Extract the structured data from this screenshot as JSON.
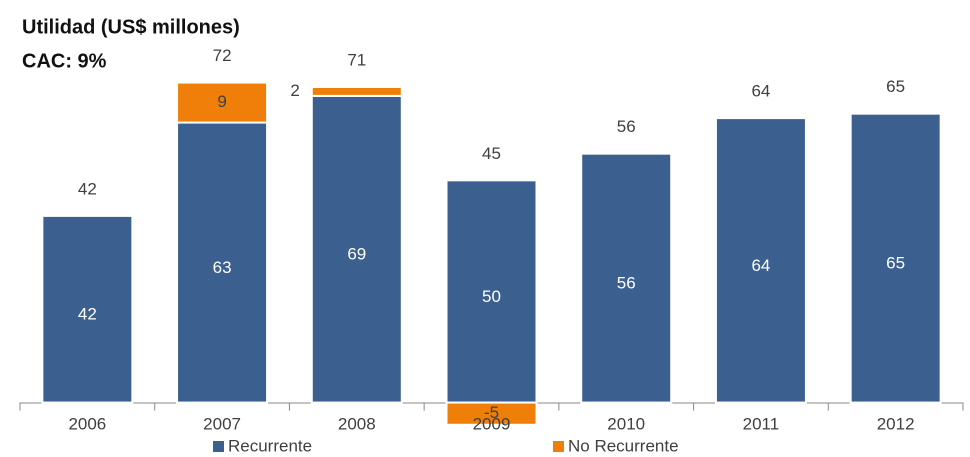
{
  "chart_data": {
    "type": "stacked_bar",
    "title": "Utilidad (US$ millones)",
    "subtitle": "CAC: 9%",
    "categories": [
      "2006",
      "2007",
      "2008",
      "2009",
      "2010",
      "2011",
      "2012"
    ],
    "series": [
      {
        "name": "Recurrente",
        "color": "#3b5f8e",
        "values": [
          42,
          63,
          69,
          50,
          56,
          64,
          65
        ]
      },
      {
        "name": "No Recurrente",
        "color": "#f07f09",
        "values": [
          null,
          9,
          2,
          -5,
          null,
          null,
          null
        ]
      }
    ],
    "totals": [
      42,
      72,
      71,
      45,
      56,
      64,
      65
    ],
    "ylim": [
      -10,
      80
    ]
  }
}
